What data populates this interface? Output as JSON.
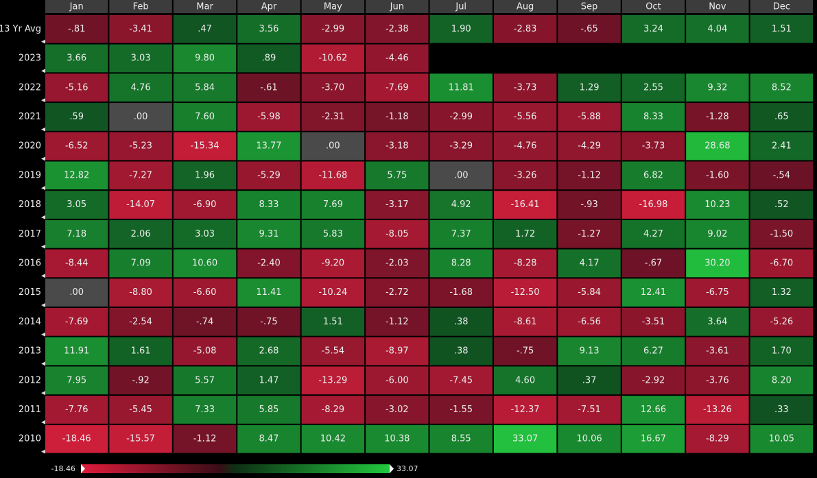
{
  "chart_data": {
    "type": "heatmap",
    "columns": [
      "Jan",
      "Feb",
      "Mar",
      "Apr",
      "May",
      "Jun",
      "Jul",
      "Aug",
      "Sep",
      "Oct",
      "Nov",
      "Dec"
    ],
    "rows": [
      "13 Yr Avg",
      "2023",
      "2022",
      "2021",
      "2020",
      "2019",
      "2018",
      "2017",
      "2016",
      "2015",
      "2014",
      "2013",
      "2012",
      "2011",
      "2010"
    ],
    "values": [
      [
        -0.81,
        -3.41,
        0.47,
        3.56,
        -2.99,
        -2.38,
        1.9,
        -2.83,
        -0.65,
        3.24,
        4.04,
        1.51
      ],
      [
        3.66,
        3.03,
        9.8,
        0.89,
        -10.62,
        -4.46,
        null,
        null,
        null,
        null,
        null,
        null
      ],
      [
        -5.16,
        4.76,
        5.84,
        -0.61,
        -3.7,
        -7.69,
        11.81,
        -3.73,
        1.29,
        2.55,
        9.32,
        8.52
      ],
      [
        0.59,
        0,
        7.6,
        -5.98,
        -2.31,
        -1.18,
        -2.99,
        -5.56,
        -5.88,
        8.33,
        -1.28,
        0.65
      ],
      [
        -6.52,
        -5.23,
        -15.34,
        13.77,
        0,
        -3.18,
        -3.29,
        -4.76,
        -4.29,
        -3.73,
        28.68,
        2.41
      ],
      [
        12.82,
        -7.27,
        1.96,
        -5.29,
        -11.68,
        5.75,
        0,
        -3.26,
        -1.12,
        6.82,
        -1.6,
        -0.54
      ],
      [
        3.05,
        -14.07,
        -6.9,
        8.33,
        7.69,
        -3.17,
        4.92,
        -16.41,
        -0.93,
        -16.98,
        10.23,
        0.52
      ],
      [
        7.18,
        2.06,
        3.03,
        9.31,
        5.83,
        -8.05,
        7.37,
        1.72,
        -1.27,
        4.27,
        9.02,
        -1.5
      ],
      [
        -8.44,
        7.09,
        10.6,
        -2.4,
        -9.2,
        -2.03,
        8.28,
        -8.28,
        4.17,
        -0.67,
        30.2,
        -6.7
      ],
      [
        0,
        -8.8,
        -6.6,
        11.41,
        -10.24,
        -2.72,
        -1.68,
        -12.5,
        -5.84,
        12.41,
        -6.75,
        1.32
      ],
      [
        -7.69,
        -2.54,
        -0.74,
        -0.75,
        1.51,
        -1.12,
        0.38,
        -8.61,
        -6.56,
        -3.51,
        3.64,
        -5.26
      ],
      [
        11.91,
        1.61,
        -5.08,
        2.68,
        -5.54,
        -8.97,
        0.38,
        -0.75,
        9.13,
        6.27,
        -3.61,
        1.7
      ],
      [
        7.95,
        -0.92,
        5.57,
        1.47,
        -13.29,
        -6,
        -7.45,
        4.6,
        0.37,
        -2.92,
        -3.76,
        8.2
      ],
      [
        -7.76,
        -5.45,
        7.33,
        5.85,
        -8.29,
        -3.02,
        -1.55,
        -12.37,
        -7.51,
        12.66,
        -13.26,
        0.33
      ],
      [
        -18.46,
        -15.57,
        -1.12,
        8.47,
        10.42,
        10.38,
        8.55,
        33.07,
        10.06,
        16.67,
        -8.29,
        10.05
      ]
    ],
    "value_labels": [
      [
        "-.81",
        "-3.41",
        ".47",
        "3.56",
        "-2.99",
        "-2.38",
        "1.90",
        "-2.83",
        "-.65",
        "3.24",
        "4.04",
        "1.51"
      ],
      [
        "3.66",
        "3.03",
        "9.80",
        ".89",
        "-10.62",
        "-4.46",
        null,
        null,
        null,
        null,
        null,
        null
      ],
      [
        "-5.16",
        "4.76",
        "5.84",
        "-.61",
        "-3.70",
        "-7.69",
        "11.81",
        "-3.73",
        "1.29",
        "2.55",
        "9.32",
        "8.52"
      ],
      [
        ".59",
        ".00",
        "7.60",
        "-5.98",
        "-2.31",
        "-1.18",
        "-2.99",
        "-5.56",
        "-5.88",
        "8.33",
        "-1.28",
        ".65"
      ],
      [
        "-6.52",
        "-5.23",
        "-15.34",
        "13.77",
        ".00",
        "-3.18",
        "-3.29",
        "-4.76",
        "-4.29",
        "-3.73",
        "28.68",
        "2.41"
      ],
      [
        "12.82",
        "-7.27",
        "1.96",
        "-5.29",
        "-11.68",
        "5.75",
        ".00",
        "-3.26",
        "-1.12",
        "6.82",
        "-1.60",
        "-.54"
      ],
      [
        "3.05",
        "-14.07",
        "-6.90",
        "8.33",
        "7.69",
        "-3.17",
        "4.92",
        "-16.41",
        "-.93",
        "-16.98",
        "10.23",
        ".52"
      ],
      [
        "7.18",
        "2.06",
        "3.03",
        "9.31",
        "5.83",
        "-8.05",
        "7.37",
        "1.72",
        "-1.27",
        "4.27",
        "9.02",
        "-1.50"
      ],
      [
        "-8.44",
        "7.09",
        "10.60",
        "-2.40",
        "-9.20",
        "-2.03",
        "8.28",
        "-8.28",
        "4.17",
        "-.67",
        "30.20",
        "-6.70"
      ],
      [
        ".00",
        "-8.80",
        "-6.60",
        "11.41",
        "-10.24",
        "-2.72",
        "-1.68",
        "-12.50",
        "-5.84",
        "12.41",
        "-6.75",
        "1.32"
      ],
      [
        "-7.69",
        "-2.54",
        "-.74",
        "-.75",
        "1.51",
        "-1.12",
        ".38",
        "-8.61",
        "-6.56",
        "-3.51",
        "3.64",
        "-5.26"
      ],
      [
        "11.91",
        "1.61",
        "-5.08",
        "2.68",
        "-5.54",
        "-8.97",
        ".38",
        "-.75",
        "9.13",
        "6.27",
        "-3.61",
        "1.70"
      ],
      [
        "7.95",
        "-.92",
        "5.57",
        "1.47",
        "-13.29",
        "-6.00",
        "-7.45",
        "4.60",
        ".37",
        "-2.92",
        "-3.76",
        "8.20"
      ],
      [
        "-7.76",
        "-5.45",
        "7.33",
        "5.85",
        "-8.29",
        "-3.02",
        "-1.55",
        "-12.37",
        "-7.51",
        "12.66",
        "-13.26",
        ".33"
      ],
      [
        "-18.46",
        "-15.57",
        "-1.12",
        "8.47",
        "10.42",
        "10.38",
        "8.55",
        "33.07",
        "10.06",
        "16.67",
        "-8.29",
        "10.05"
      ]
    ],
    "colorbar": {
      "min": -18.46,
      "max": 33.07
    }
  }
}
